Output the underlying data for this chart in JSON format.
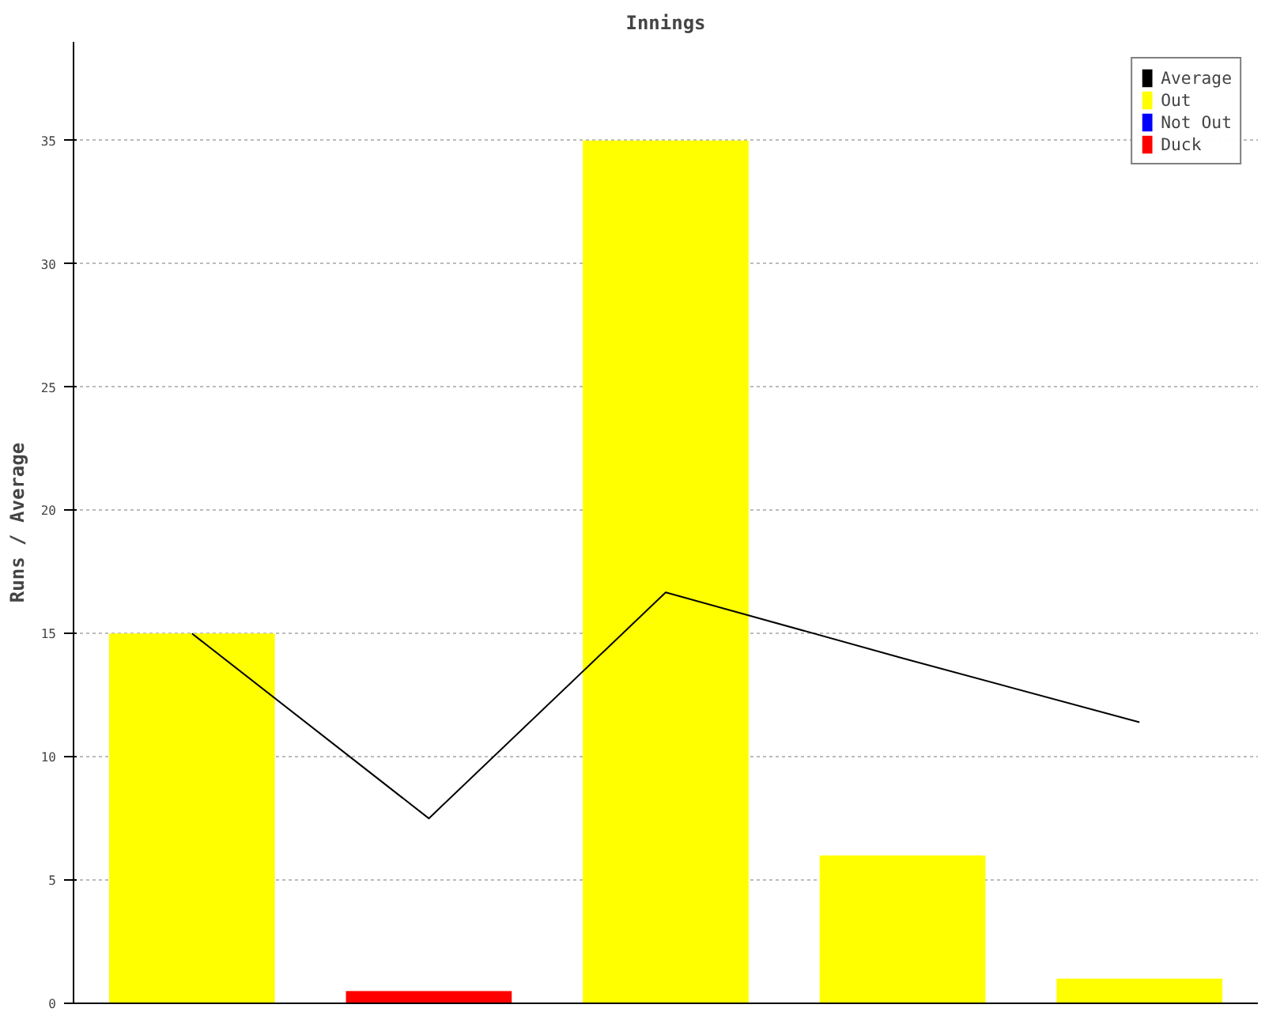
{
  "chart_data": {
    "type": "bar",
    "title": "Innings",
    "ylabel": "Runs / Average",
    "categories": [
      null,
      null,
      null,
      null,
      null
    ],
    "series": [
      {
        "name": "Average",
        "type": "line",
        "color": "#000000",
        "values": [
          15,
          7.5,
          16.67,
          14,
          11.4
        ]
      },
      {
        "name": "Out",
        "color": "#ffff00",
        "values": [
          15,
          null,
          35,
          6,
          1
        ]
      },
      {
        "name": "Not Out",
        "color": "#0000ff",
        "values": [
          null,
          null,
          null,
          null,
          null
        ]
      },
      {
        "name": "Duck",
        "color": "#ff0000",
        "values": [
          null,
          0.5,
          null,
          null,
          null
        ]
      }
    ],
    "ylim": [
      0,
      39
    ],
    "yticks": [
      0,
      5,
      10,
      15,
      20,
      25,
      30,
      35
    ],
    "grid": "y",
    "legend": "top right",
    "marker": "none",
    "line_style": "solid"
  }
}
